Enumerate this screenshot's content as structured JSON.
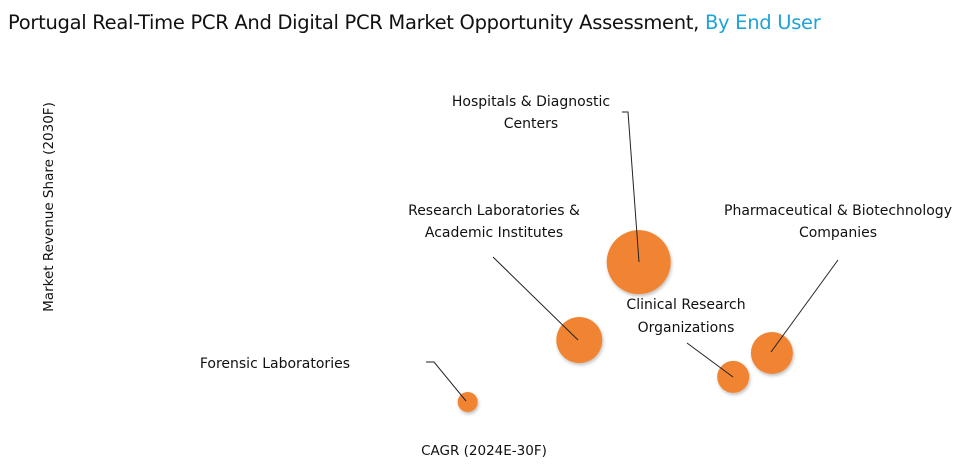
{
  "title": {
    "main": "Portugal Real-Time PCR And Digital PCR Market Opportunity Assessment,",
    "highlight": "By End User"
  },
  "chart_data": {
    "type": "bubble",
    "title": "Portugal Real-Time PCR And Digital PCR Market Opportunity Assessment, By End User",
    "xlabel": "CAGR (2024E-30F)",
    "ylabel": "Market Revenue Share (2030F)",
    "xlim": [
      0,
      100
    ],
    "ylim": [
      0,
      100
    ],
    "note": "relative positions, no numeric ticks shown",
    "color": "#f08430",
    "points": [
      {
        "name": "Forensic Laboratories",
        "label_lines": [
          "Forensic Laboratories"
        ],
        "x": 45.3,
        "y": 10,
        "size": 10
      },
      {
        "name": "Research Laboratories & Academic Institutes",
        "label_lines": [
          "Research Laboratories &",
          "Academic Institutes"
        ],
        "x": 57.7,
        "y": 26.3,
        "size": 23
      },
      {
        "name": "Hospitals & Diagnostic Centers",
        "label_lines": [
          "Hospitals & Diagnostic",
          "Centers"
        ],
        "x": 64.3,
        "y": 46.8,
        "size": 32
      },
      {
        "name": "Clinical Research Organizations",
        "label_lines": [
          "Clinical Research",
          "Organizations"
        ],
        "x": 74.8,
        "y": 16.6,
        "size": 16
      },
      {
        "name": "Pharmaceutical & Biotechnology Companies",
        "label_lines": [
          "Pharmaceutical & Biotechnology",
          "Companies"
        ],
        "x": 79.1,
        "y": 22.9,
        "size": 21
      }
    ]
  }
}
